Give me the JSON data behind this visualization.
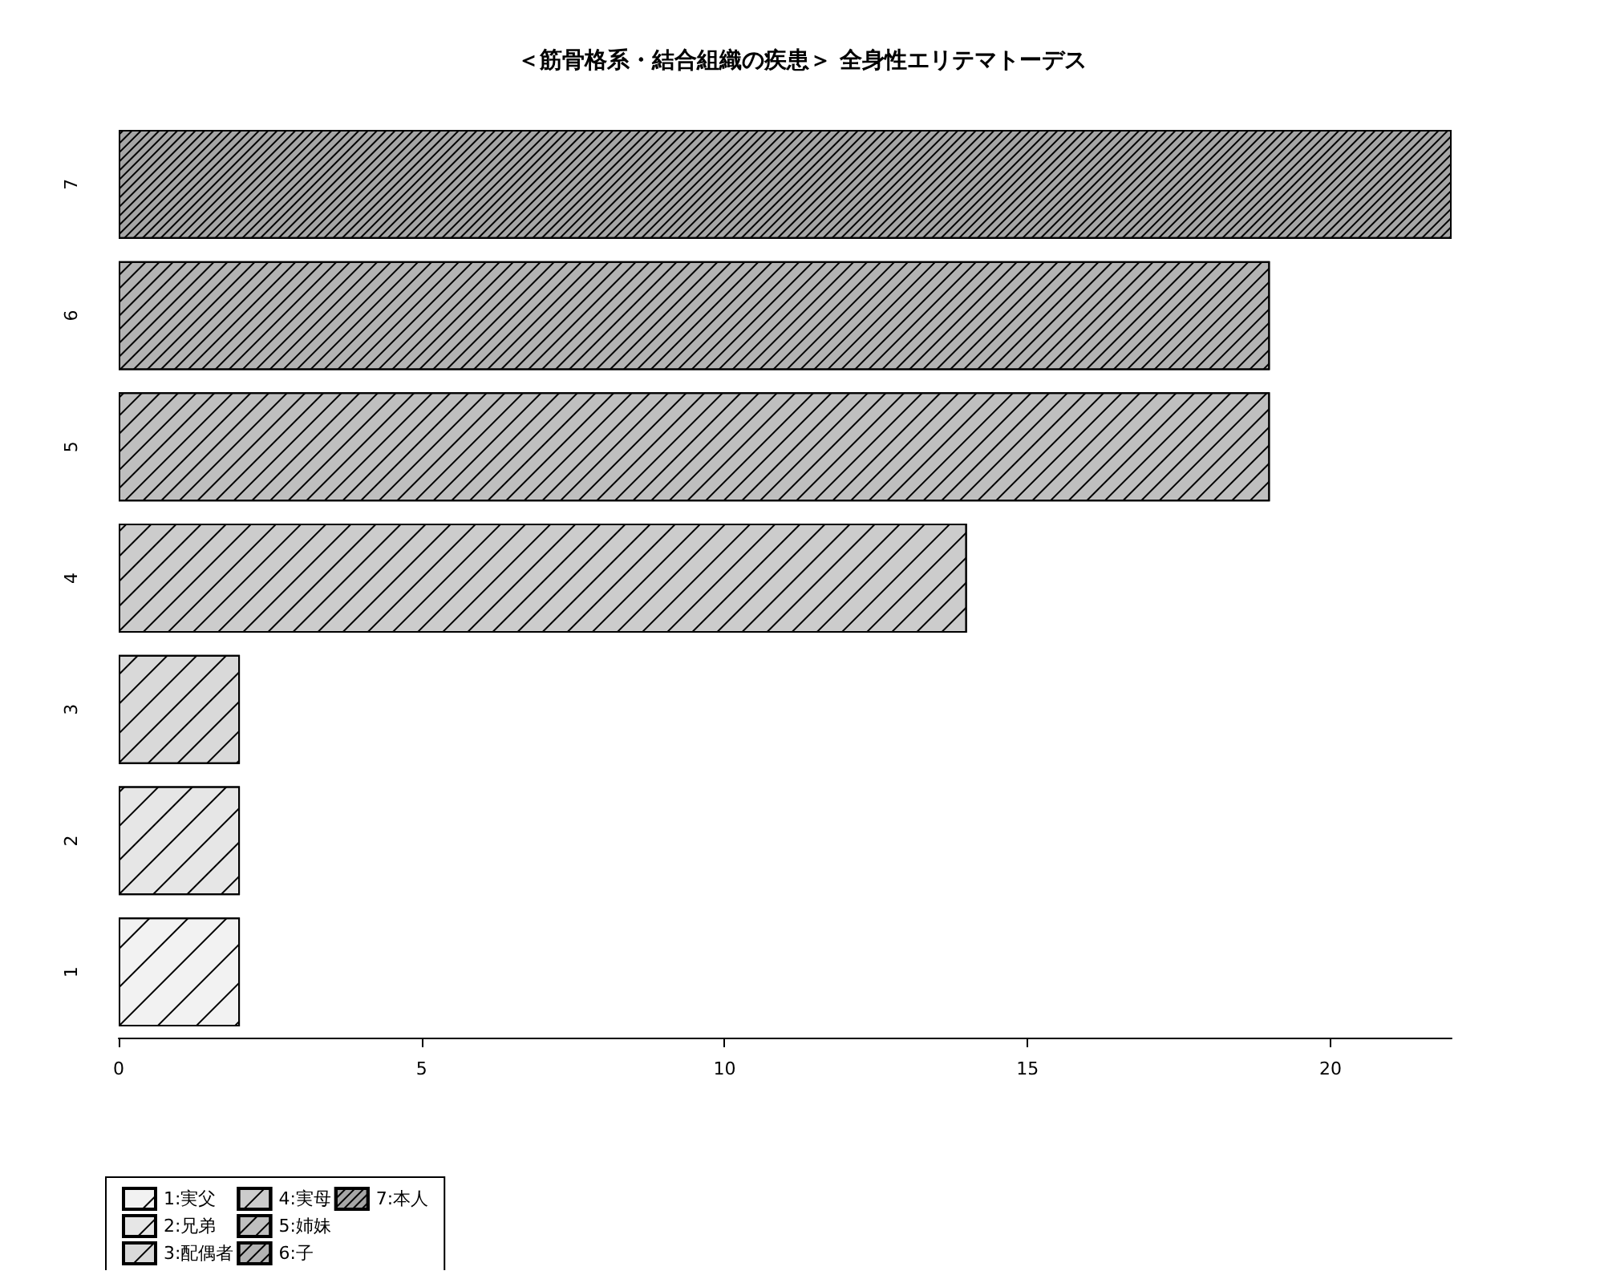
{
  "chart_data": {
    "type": "bar",
    "orientation": "horizontal",
    "stacked": true,
    "title": "＜筋骨格系・結合組織の疾患＞ 全身性エリテマトーデス",
    "categories": [
      "7",
      "6",
      "5",
      "4",
      "3",
      "2",
      "1"
    ],
    "series": [
      {
        "name": "1:実父",
        "color": "#f2f2f2",
        "values": [
          null,
          null,
          null,
          null,
          null,
          null,
          2
        ]
      },
      {
        "name": "2:兄弟",
        "color": "#e6e6e6",
        "values": [
          null,
          null,
          null,
          null,
          null,
          2,
          null
        ]
      },
      {
        "name": "3:配偶者",
        "color": "#d9d9d9",
        "values": [
          null,
          null,
          null,
          null,
          2,
          null,
          null
        ]
      },
      {
        "name": "4:実母",
        "color": "#cccccc",
        "values": [
          null,
          null,
          null,
          14,
          null,
          null,
          null
        ]
      },
      {
        "name": "5:姉妹",
        "color": "#bfbfbf",
        "values": [
          null,
          null,
          19,
          null,
          null,
          null,
          null
        ]
      },
      {
        "name": "6:子",
        "color": "#b3b3b3",
        "values": [
          null,
          19,
          null,
          null,
          null,
          null,
          null
        ]
      },
      {
        "name": "7:本人",
        "color": "#a6a6a6",
        "values": [
          22,
          null,
          null,
          null,
          null,
          null,
          null
        ]
      }
    ],
    "xlim": [
      0,
      22
    ],
    "xticks": [
      0,
      5,
      10,
      15,
      20
    ],
    "grid": false,
    "legend": "bottom left"
  }
}
